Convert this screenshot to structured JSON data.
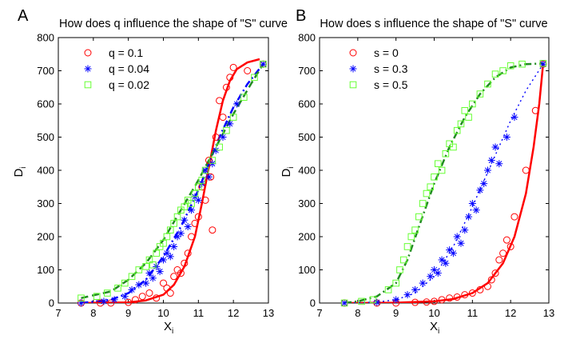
{
  "chart_data": [
    {
      "type": "scatter",
      "panel": "A",
      "title": "How does q influence the shape of \"S\" curve",
      "xlabel": "X",
      "xlabel_sub": "i",
      "ylabel": "D",
      "ylabel_sub": "i",
      "xlim": [
        7,
        13
      ],
      "ylim": [
        0,
        800
      ],
      "xticks": [
        7,
        8,
        9,
        10,
        11,
        12,
        13
      ],
      "yticks": [
        0,
        100,
        200,
        300,
        400,
        500,
        600,
        700,
        800
      ],
      "legend_position": "top-left",
      "series": [
        {
          "name": "q = 0.1",
          "marker": "circle",
          "color": "#ff0000",
          "line_style": "solid",
          "curve": {
            "x": [
              7.65,
              9.0,
              9.5,
              10.0,
              10.3,
              10.6,
              10.9,
              11.1,
              11.3,
              11.5,
              11.7,
              11.9,
              12.1,
              12.4,
              12.75
            ],
            "y": [
              0,
              2,
              8,
              25,
              55,
              110,
              200,
              300,
              410,
              520,
              610,
              670,
              705,
              725,
              735
            ]
          },
          "points": {
            "x": [
              7.65,
              8.2,
              8.5,
              9.0,
              9.2,
              9.4,
              9.6,
              9.8,
              10.0,
              10.1,
              10.2,
              10.3,
              10.4,
              10.5,
              10.6,
              10.7,
              10.8,
              10.9,
              11.0,
              11.1,
              11.2,
              11.3,
              11.35,
              11.4,
              11.5,
              11.6,
              11.7,
              11.8,
              11.9,
              12.0,
              12.4,
              12.85
            ],
            "y": [
              0,
              0,
              0,
              2,
              10,
              20,
              30,
              15,
              60,
              45,
              30,
              80,
              100,
              90,
              120,
              150,
              200,
              240,
              260,
              350,
              310,
              430,
              380,
              220,
              500,
              610,
              560,
              650,
              680,
              710,
              700,
              720
            ]
          }
        },
        {
          "name": "q = 0.04",
          "marker": "asterisk",
          "color": "#0000ff",
          "line_style": "dashdot",
          "curve": {
            "x": [
              7.65,
              8.5,
              9.0,
              9.5,
              10.0,
              10.5,
              11.0,
              11.3,
              11.6,
              12.0,
              12.4,
              12.85
            ],
            "y": [
              0,
              10,
              30,
              70,
              140,
              230,
              340,
              420,
              500,
              590,
              660,
              720
            ]
          },
          "points": {
            "x": [
              7.65,
              8.3,
              8.6,
              8.9,
              9.1,
              9.3,
              9.5,
              9.6,
              9.7,
              9.8,
              9.9,
              10.0,
              10.1,
              10.2,
              10.3,
              10.4,
              10.5,
              10.6,
              10.7,
              10.8,
              10.9,
              11.0,
              11.1,
              11.2,
              11.3,
              11.4,
              11.5,
              11.7,
              11.9,
              12.1,
              12.85
            ],
            "y": [
              0,
              5,
              10,
              20,
              40,
              55,
              60,
              90,
              75,
              110,
              95,
              130,
              150,
              140,
              170,
              200,
              210,
              250,
              230,
              280,
              320,
              310,
              360,
              400,
              380,
              420,
              460,
              500,
              540,
              600,
              720
            ]
          }
        },
        {
          "name": "q = 0.02",
          "marker": "square",
          "color": "#66ff33",
          "line_style": "dashed",
          "line_color": "#228b22",
          "curve": {
            "x": [
              7.65,
              8.5,
              9.0,
              9.5,
              10.0,
              10.5,
              11.0,
              11.5,
              12.0,
              12.5,
              12.85
            ],
            "y": [
              15,
              35,
              70,
              120,
              190,
              280,
              370,
              470,
              570,
              660,
              720
            ]
          },
          "points": {
            "x": [
              7.65,
              8.1,
              8.4,
              8.7,
              8.9,
              9.1,
              9.3,
              9.5,
              9.6,
              9.7,
              9.8,
              9.9,
              10.0,
              10.1,
              10.2,
              10.3,
              10.4,
              10.5,
              10.6,
              10.7,
              10.8,
              10.9,
              11.0,
              11.1,
              11.2,
              11.4,
              11.6,
              11.8,
              12.0,
              12.3,
              12.6,
              12.85
            ],
            "y": [
              15,
              20,
              30,
              45,
              60,
              80,
              100,
              110,
              130,
              115,
              150,
              170,
              180,
              200,
              220,
              240,
              260,
              280,
              290,
              310,
              300,
              330,
              350,
              370,
              400,
              430,
              470,
              520,
              560,
              620,
              680,
              720
            ]
          }
        }
      ]
    },
    {
      "type": "scatter",
      "panel": "B",
      "title": "How does s influence the shape of \"S\" curve",
      "xlabel": "X",
      "xlabel_sub": "i",
      "ylabel": "D",
      "ylabel_sub": "i",
      "xlim": [
        7,
        13
      ],
      "ylim": [
        0,
        800
      ],
      "xticks": [
        7,
        8,
        9,
        10,
        11,
        12,
        13
      ],
      "yticks": [
        0,
        100,
        200,
        300,
        400,
        500,
        600,
        700,
        800
      ],
      "legend_position": "top-left",
      "series": [
        {
          "name": "s = 0",
          "marker": "circle",
          "color": "#ff0000",
          "line_style": "solid",
          "curve": {
            "x": [
              7.65,
              9.0,
              10.0,
              10.5,
              11.0,
              11.4,
              11.8,
              12.1,
              12.4,
              12.6,
              12.75,
              12.85
            ],
            "y": [
              0,
              1,
              5,
              12,
              30,
              60,
              120,
              200,
              330,
              470,
              600,
              720
            ]
          },
          "points": {
            "x": [
              7.65,
              8.5,
              9.0,
              9.5,
              9.8,
              10.0,
              10.2,
              10.4,
              10.6,
              10.8,
              11.0,
              11.2,
              11.4,
              11.5,
              11.6,
              11.7,
              11.8,
              11.9,
              12.0,
              12.1,
              12.4,
              12.65,
              12.85
            ],
            "y": [
              0,
              0,
              0,
              2,
              3,
              5,
              10,
              15,
              18,
              25,
              30,
              40,
              50,
              70,
              90,
              130,
              150,
              190,
              170,
              260,
              400,
              580,
              720
            ]
          }
        },
        {
          "name": "s = 0.3",
          "marker": "asterisk",
          "color": "#0000ff",
          "line_style": "dotted",
          "curve": {
            "x": [
              7.65,
              8.5,
              9.0,
              9.5,
              10.0,
              10.5,
              11.0,
              11.5,
              12.0,
              12.4,
              12.85
            ],
            "y": [
              0,
              3,
              10,
              30,
              80,
              170,
              290,
              420,
              550,
              640,
              720
            ]
          },
          "points": {
            "x": [
              7.65,
              8.5,
              9.0,
              9.3,
              9.5,
              9.7,
              9.9,
              10.0,
              10.1,
              10.2,
              10.3,
              10.4,
              10.5,
              10.6,
              10.7,
              10.8,
              10.9,
              11.0,
              11.1,
              11.2,
              11.3,
              11.4,
              11.5,
              11.6,
              11.7,
              11.9,
              12.1,
              12.85
            ],
            "y": [
              0,
              2,
              10,
              25,
              40,
              60,
              80,
              100,
              90,
              130,
              120,
              160,
              150,
              200,
              180,
              220,
              260,
              300,
              280,
              340,
              360,
              400,
              430,
              470,
              420,
              500,
              560,
              720
            ]
          }
        },
        {
          "name": "s = 0.5",
          "marker": "square",
          "color": "#66ff33",
          "line_style": "dashdot",
          "line_color": "#228b22",
          "curve": {
            "x": [
              7.65,
              8.0,
              8.5,
              9.0,
              9.3,
              9.6,
              10.0,
              10.4,
              10.8,
              11.2,
              11.6,
              12.0,
              12.4,
              12.85
            ],
            "y": [
              0,
              5,
              20,
              60,
              130,
              230,
              360,
              470,
              560,
              630,
              680,
              710,
              720,
              722
            ]
          },
          "points": {
            "x": [
              7.65,
              8.1,
              8.4,
              8.8,
              9.0,
              9.1,
              9.2,
              9.3,
              9.4,
              9.5,
              9.6,
              9.7,
              9.8,
              9.9,
              10.0,
              10.1,
              10.2,
              10.3,
              10.4,
              10.5,
              10.6,
              10.7,
              10.8,
              10.9,
              11.0,
              11.2,
              11.4,
              11.6,
              11.8,
              12.0,
              12.3,
              12.85
            ],
            "y": [
              0,
              5,
              10,
              40,
              60,
              100,
              130,
              170,
              200,
              220,
              260,
              300,
              330,
              350,
              380,
              420,
              400,
              450,
              480,
              470,
              520,
              540,
              580,
              560,
              600,
              630,
              660,
              690,
              700,
              715,
              720,
              722
            ]
          }
        }
      ]
    }
  ]
}
